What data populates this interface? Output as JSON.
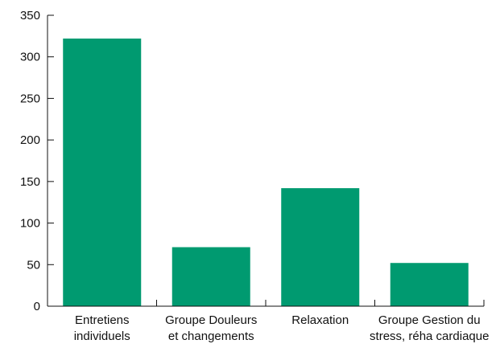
{
  "chart_data": {
    "type": "bar",
    "categories": [
      [
        "Entretiens",
        "individuels"
      ],
      [
        "Groupe Douleurs",
        "et changements"
      ],
      [
        "Relaxation"
      ],
      [
        "Groupe Gestion du",
        "stress, réha cardiaque"
      ]
    ],
    "values": [
      322,
      71,
      142,
      52
    ],
    "title": "",
    "xlabel": "",
    "ylabel": "",
    "ylim": [
      0,
      350
    ],
    "yticks": [
      "0",
      "50",
      "100",
      "150",
      "200",
      "250",
      "300",
      "350"
    ],
    "grid": false,
    "legend": "none",
    "bar_color": "#009a70"
  }
}
